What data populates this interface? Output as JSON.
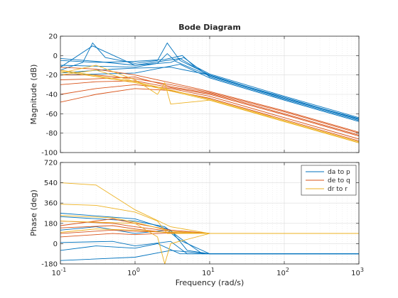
{
  "chart_data": {
    "type": "line",
    "title": "Bode Diagram",
    "xlabel": "Frequency  (rad/s)",
    "x_scale": "log",
    "xlim": [
      0.1,
      1000
    ],
    "x_ticks": [
      {
        "base": "10",
        "exp": "-1",
        "value": 0.1
      },
      {
        "base": "10",
        "exp": "0",
        "value": 1
      },
      {
        "base": "10",
        "exp": "1",
        "value": 10
      },
      {
        "base": "10",
        "exp": "2",
        "value": 100
      },
      {
        "base": "10",
        "exp": "3",
        "value": 1000
      }
    ],
    "grid": true,
    "legend_position": "top-right",
    "colors": {
      "blue": "#0072bd",
      "red": "#d95319",
      "yellow": "#edb120",
      "axis": "#262626",
      "grid": "#d9d9d9"
    },
    "panels": [
      {
        "id": "magnitude",
        "ylabel": "Magnitude (dB)",
        "ylim": [
          -100,
          20
        ],
        "y_ticks": [
          "20",
          "0",
          "-20",
          "-40",
          "-60",
          "-80",
          "-100"
        ],
        "y_tick_values": [
          20,
          0,
          -20,
          -40,
          -60,
          -80,
          -100
        ],
        "series": [
          {
            "name": "da to p",
            "color": "#0072bd",
            "curves": [
              {
                "x": [
                  0.1,
                  0.2,
                  0.27,
                  0.4,
                  1,
                  2,
                  2.7,
                  4,
                  10,
                  100,
                  1000
                ],
                "y": [
                  -15,
                  -7,
                  13,
                  -2,
                  -8,
                  -5,
                  13,
                  -5,
                  -20,
                  -44,
                  -65
                ]
              },
              {
                "x": [
                  0.1,
                  0.3,
                  1,
                  2.5,
                  4.3,
                  6,
                  10,
                  100,
                  1000
                ],
                "y": [
                  -5,
                  -7,
                  -6,
                  -4,
                  0,
                  -10,
                  -19,
                  -42,
                  -64
                ]
              },
              {
                "x": [
                  0.1,
                  0.3,
                  1,
                  3,
                  4.5,
                  10,
                  100,
                  1000
                ],
                "y": [
                  -3,
                  -6,
                  -10,
                  -7,
                  -2,
                  -22,
                  -45,
                  -67
                ]
              },
              {
                "x": [
                  0.1,
                  1,
                  2,
                  2.7,
                  3.5,
                  10,
                  100,
                  1000
                ],
                "y": [
                  -10,
                  -12,
                  -8,
                  2,
                  -6,
                  -21,
                  -43,
                  -66
                ]
              },
              {
                "x": [
                  0.1,
                  0.5,
                  1,
                  3,
                  10,
                  100,
                  1000
                ],
                "y": [
                  -18,
                  -14,
                  -13,
                  -12,
                  -20,
                  -44,
                  -65
                ]
              },
              {
                "x": [
                  0.1,
                  1,
                  4,
                  10,
                  100,
                  1000
                ],
                "y": [
                  -20,
                  -18,
                  -9,
                  -23,
                  -46,
                  -68
                ]
              },
              {
                "x": [
                  0.1,
                  0.27,
                  1,
                  4,
                  10,
                  100,
                  1000
                ],
                "y": [
                  -12,
                  10,
                  -10,
                  -3,
                  -21,
                  -44,
                  -66
                ]
              }
            ]
          },
          {
            "name": "de to q",
            "color": "#d95319",
            "curves": [
              {
                "x": [
                  0.1,
                  0.3,
                  1,
                  3,
                  10,
                  100,
                  1000
                ],
                "y": [
                  -20,
                  -20,
                  -24,
                  -30,
                  -38,
                  -58,
                  -80
                ]
              },
              {
                "x": [
                  0.1,
                  0.3,
                  1,
                  3,
                  10,
                  100,
                  1000
                ],
                "y": [
                  -30,
                  -27,
                  -26,
                  -33,
                  -40,
                  -61,
                  -83
                ]
              },
              {
                "x": [
                  0.1,
                  0.3,
                  1,
                  3,
                  10,
                  100,
                  1000
                ],
                "y": [
                  -40,
                  -34,
                  -30,
                  -34,
                  -42,
                  -64,
                  -86
                ]
              },
              {
                "x": [
                  0.1,
                  0.3,
                  1,
                  3,
                  10,
                  100,
                  1000
                ],
                "y": [
                  -48,
                  -40,
                  -34,
                  -36,
                  -44,
                  -66,
                  -88
                ]
              },
              {
                "x": [
                  0.1,
                  0.3,
                  1,
                  3,
                  10,
                  100,
                  1000
                ],
                "y": [
                  -25,
                  -24,
                  -22,
                  -32,
                  -39,
                  -60,
                  -82
                ]
              },
              {
                "x": [
                  0.1,
                  0.3,
                  1,
                  3,
                  10,
                  100,
                  1000
                ],
                "y": [
                  -12,
                  -14,
                  -20,
                  -28,
                  -37,
                  -57,
                  -79
                ]
              }
            ]
          },
          {
            "name": "dr to r",
            "color": "#edb120",
            "curves": [
              {
                "x": [
                  0.1,
                  1,
                  10,
                  100,
                  1000
                ],
                "y": [
                  -15,
                  -27,
                  -45,
                  -67,
                  -89
                ]
              },
              {
                "x": [
                  0.1,
                  1,
                  10,
                  100,
                  1000
                ],
                "y": [
                  -16,
                  -28,
                  -46,
                  -68,
                  -90
                ]
              },
              {
                "x": [
                  0.1,
                  0.3,
                  1,
                  2,
                  2.5,
                  3,
                  10,
                  100,
                  1000
                ],
                "y": [
                  -18,
                  -10,
                  -25,
                  -40,
                  -28,
                  -50,
                  -46,
                  -68,
                  -90
                ]
              },
              {
                "x": [
                  0.1,
                  0.3,
                  1,
                  10,
                  100,
                  1000
                ],
                "y": [
                  -20,
                  -15,
                  -27,
                  -45,
                  -67,
                  -89
                ]
              }
            ]
          }
        ]
      },
      {
        "id": "phase",
        "ylabel": "Phase (deg)",
        "ylim": [
          -180,
          720
        ],
        "y_ticks": [
          "720",
          "540",
          "360",
          "180",
          "0",
          "-180"
        ],
        "y_tick_values": [
          720,
          540,
          360,
          180,
          0,
          -180
        ],
        "series": [
          {
            "name": "da to p",
            "color": "#0072bd",
            "curves": [
              {
                "x": [
                  0.1,
                  1,
                  3,
                  5,
                  10,
                  100,
                  1000
                ],
                "y": [
                  270,
                  220,
                  120,
                  -60,
                  -90,
                  -90,
                  -90
                ]
              },
              {
                "x": [
                  0.1,
                  1,
                  2.5,
                  4,
                  8,
                  100,
                  1000
                ],
                "y": [
                  240,
                  200,
                  150,
                  50,
                  -90,
                  -90,
                  -90
                ]
              },
              {
                "x": [
                  0.1,
                  0.5,
                  1,
                  3,
                  5,
                  10,
                  1000
                ],
                "y": [
                  10,
                  20,
                  -20,
                  20,
                  -90,
                  -90,
                  -90
                ]
              },
              {
                "x": [
                  0.1,
                  0.3,
                  1,
                  2,
                  4,
                  10,
                  1000
                ],
                "y": [
                  -60,
                  -20,
                  -40,
                  0,
                  -90,
                  -90,
                  -90
                ]
              },
              {
                "x": [
                  0.1,
                  0.3,
                  1,
                  2.7,
                  4,
                  10,
                  1000
                ],
                "y": [
                  120,
                  150,
                  90,
                  120,
                  30,
                  -90,
                  -90
                ]
              },
              {
                "x": [
                  0.1,
                  1,
                  3,
                  10,
                  1000
                ],
                "y": [
                  -150,
                  -120,
                  -60,
                  -90,
                  -90
                ]
              }
            ]
          },
          {
            "name": "de to q",
            "color": "#d95319",
            "curves": [
              {
                "x": [
                  0.1,
                  0.5,
                  1,
                  3,
                  10,
                  1000
                ],
                "y": [
                  90,
                  120,
                  110,
                  100,
                  90,
                  90
                ]
              },
              {
                "x": [
                  0.1,
                  0.5,
                  1,
                  3,
                  10,
                  1000
                ],
                "y": [
                  200,
                  180,
                  150,
                  110,
                  90,
                  90
                ]
              },
              {
                "x": [
                  0.1,
                  0.5,
                  1,
                  3,
                  10,
                  1000
                ],
                "y": [
                  140,
                  160,
                  130,
                  95,
                  90,
                  90
                ]
              },
              {
                "x": [
                  0.1,
                  0.5,
                  1,
                  3,
                  10,
                  1000
                ],
                "y": [
                  60,
                  90,
                  80,
                  95,
                  90,
                  90
                ]
              },
              {
                "x": [
                  0.1,
                  0.5,
                  1,
                  3,
                  10,
                  1000
                ],
                "y": [
                  160,
                  220,
                  180,
                  120,
                  92,
                  90
                ]
              }
            ]
          },
          {
            "name": "dr to r",
            "color": "#edb120",
            "curves": [
              {
                "x": [
                  0.1,
                  0.3,
                  1,
                  3,
                  10,
                  1000
                ],
                "y": [
                  540,
                  520,
                  300,
                  150,
                  90,
                  90
                ]
              },
              {
                "x": [
                  0.1,
                  0.3,
                  1,
                  2,
                  2.7,
                  10,
                  1000
                ],
                "y": [
                  350,
                  340,
                  280,
                  200,
                  90,
                  90,
                  90
                ]
              },
              {
                "x": [
                  0.1,
                  0.3,
                  1,
                  2.5,
                  10,
                  1000
                ],
                "y": [
                  100,
                  130,
                  120,
                  100,
                  90,
                  90
                ]
              },
              {
                "x": [
                  0.1,
                  1,
                  2,
                  2.5,
                  3,
                  10,
                  1000
                ],
                "y": [
                  200,
                  180,
                  60,
                  -180,
                  0,
                  90,
                  90
                ]
              },
              {
                "x": [
                  0.1,
                  0.5,
                  1,
                  3,
                  10,
                  1000
                ],
                "y": [
                  250,
                  230,
                  190,
                  110,
                  90,
                  90
                ]
              }
            ]
          }
        ]
      }
    ]
  }
}
